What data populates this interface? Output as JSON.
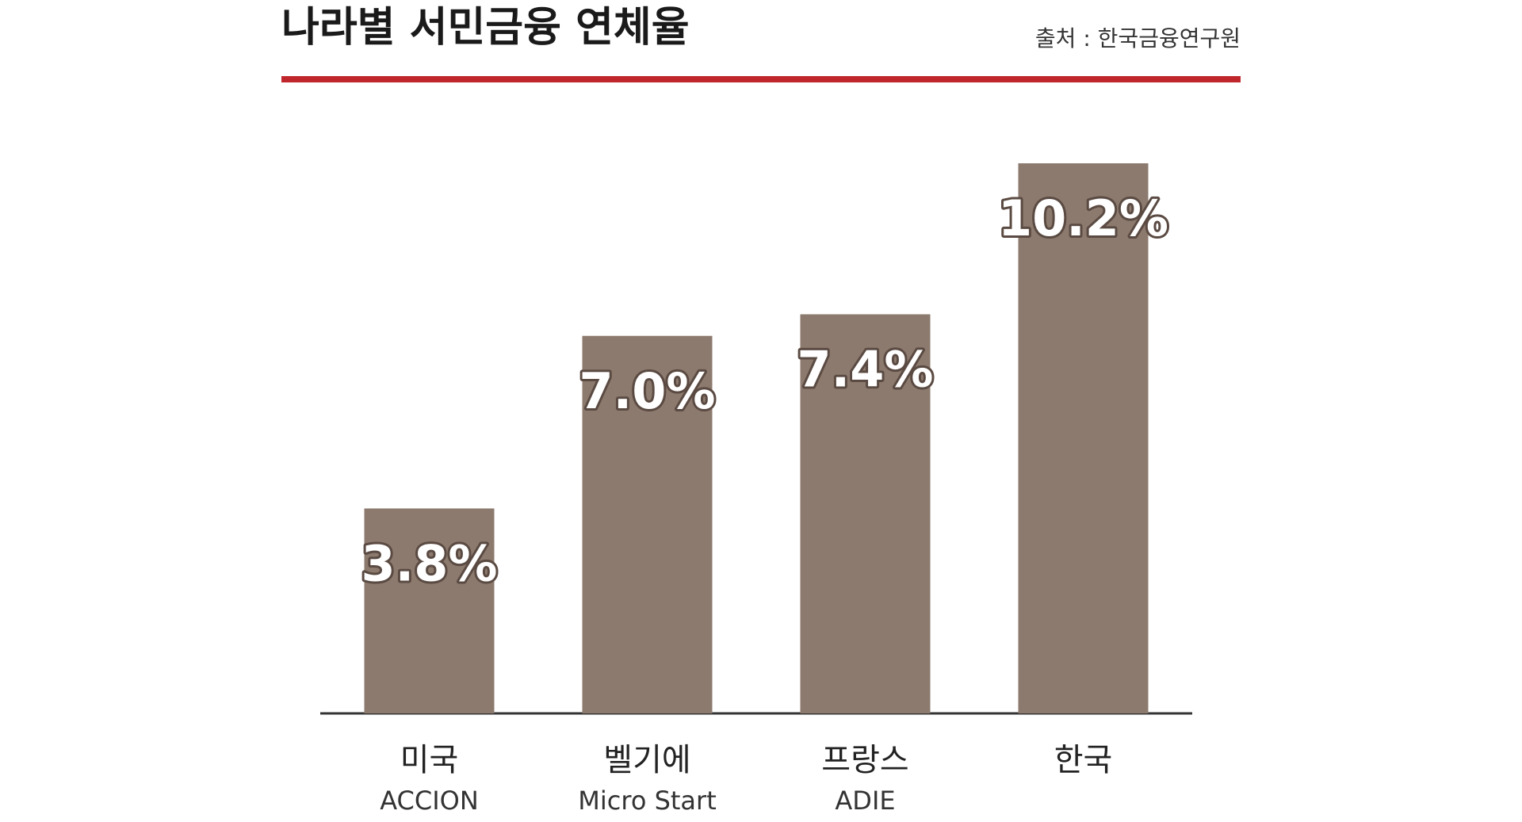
{
  "chart_data": {
    "type": "bar",
    "title": "나라별 서민금융 연체율",
    "source": "출처 : 한국금융연구원",
    "categories": [
      "미국",
      "벨기에",
      "프랑스",
      "한국"
    ],
    "institutions": [
      "ACCION",
      "Micro Start",
      "ADIE",
      null
    ],
    "values": [
      3.8,
      7.0,
      7.4,
      10.2
    ],
    "value_labels": [
      "3.8%",
      "7.0%",
      "7.4%",
      "10.2%"
    ],
    "color": "#8c7a6e",
    "accent_color": "#c0272d"
  }
}
